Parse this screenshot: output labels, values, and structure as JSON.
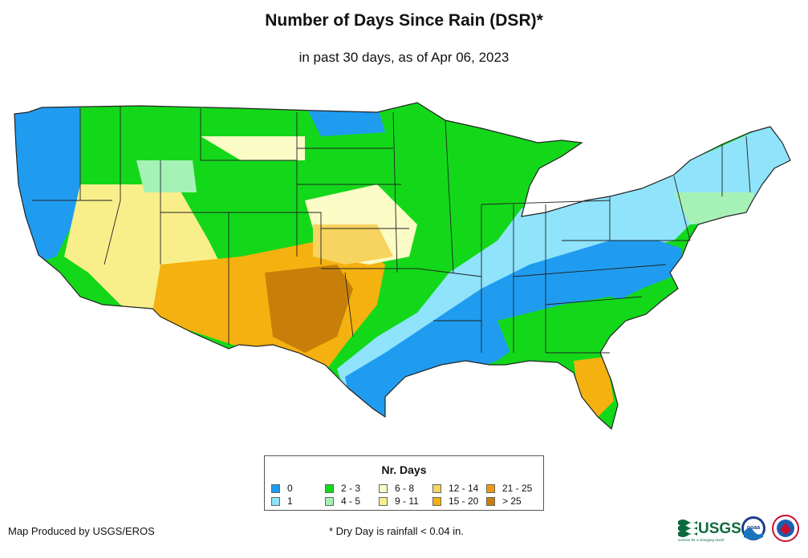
{
  "header": {
    "title": "Number of Days Since Rain (DSR)*",
    "subtitle": "in past 30 days, as of Apr 06, 2023"
  },
  "legend": {
    "title": "Nr. Days",
    "items": [
      {
        "label": "0",
        "color": "#1f9cf0"
      },
      {
        "label": "1",
        "color": "#8fe3fb"
      },
      {
        "label": "2 - 3",
        "color": "#13d81a"
      },
      {
        "label": "4 - 5",
        "color": "#a6f2b6"
      },
      {
        "label": "6 - 8",
        "color": "#fbfbc5"
      },
      {
        "label": "9 - 11",
        "color": "#f9ef8a"
      },
      {
        "label": "12 - 14",
        "color": "#f7d35f"
      },
      {
        "label": "15 - 20",
        "color": "#f5b10f"
      },
      {
        "label": "21 - 25",
        "color": "#f09a12"
      },
      {
        "label": "> 25",
        "color": "#c87f0a"
      }
    ]
  },
  "footer": {
    "credit": "Map Produced by USGS/EROS",
    "footnote": "* Dry Day is rainfall < 0.04 in.",
    "logos": {
      "usgs": "USGS",
      "usgs_tagline": "science for a changing world",
      "noaa": "noaa"
    }
  }
}
